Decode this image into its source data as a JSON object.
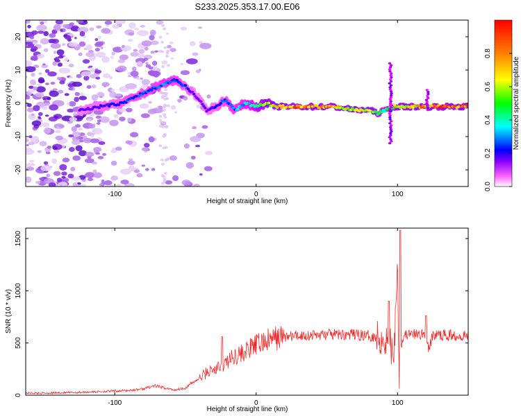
{
  "title": "S233.2025.353.17.00.E06",
  "colors": {
    "trace": "#ee2b2b",
    "background": "#ffffff",
    "axis": "#000000"
  },
  "chart_data": [
    {
      "type": "heatmap",
      "xlabel": "Height of straight line (km)",
      "ylabel": "Frequency (Hz)",
      "xlim": [
        -163,
        150
      ],
      "ylim": [
        -25,
        25
      ],
      "xticks": [
        -100,
        0,
        100
      ],
      "xtick_labels": [
        "-100",
        "0",
        "100"
      ],
      "yticks": [
        -20,
        -10,
        0,
        10,
        20
      ],
      "ytick_labels": [
        "-20",
        "-10",
        "0",
        "10",
        "20"
      ],
      "colorbar": {
        "label": "Normalized spectral amplitude",
        "range": [
          0,
          1
        ],
        "ticks": [
          0.0,
          0.2,
          0.4,
          0.6,
          0.8
        ],
        "tick_labels": [
          "0.0",
          "0.2",
          "0.4",
          "0.6",
          "0.8"
        ],
        "colormap": [
          "#ffffff",
          "#ff00ff",
          "#0000ff",
          "#00ffff",
          "#00ff00",
          "#ffff00",
          "#ff8000",
          "#ff0000"
        ]
      },
      "ridge": {
        "x": [
          -125,
          -110,
          -95,
          -85,
          -75,
          -65,
          -57,
          -50,
          -42,
          -35,
          -28,
          -22,
          -15,
          -8,
          0,
          8,
          15,
          25,
          40,
          55,
          70,
          80,
          86,
          92,
          98,
          105,
          112,
          120,
          135,
          150
        ],
        "freq": [
          -2,
          -1,
          0,
          2,
          4,
          6,
          7,
          5,
          2,
          -2,
          -1,
          1,
          -2,
          0,
          -1,
          0,
          -1,
          -1,
          -1,
          -1,
          -2,
          -2,
          -3,
          -2,
          -1,
          -1,
          -1,
          -1,
          -1,
          -1
        ],
        "amplitude": [
          0.25,
          0.28,
          0.32,
          0.35,
          0.35,
          0.4,
          0.38,
          0.32,
          0.25,
          0.25,
          0.3,
          0.35,
          0.4,
          0.45,
          0.55,
          0.7,
          0.85,
          0.95,
          0.9,
          0.85,
          0.7,
          0.75,
          0.6,
          0.55,
          0.8,
          0.75,
          0.8,
          0.95,
          0.98,
          0.95
        ]
      }
    },
    {
      "type": "line",
      "xlabel": "Height of straight line (km)",
      "ylabel": "SNR (10 * v/v)",
      "xlim": [
        -163,
        150
      ],
      "ylim": [
        0,
        1600
      ],
      "xticks": [
        -100,
        0,
        100
      ],
      "xtick_labels": [
        "-100",
        "0",
        "100"
      ],
      "yticks": [
        0,
        500,
        1000,
        1500
      ],
      "ytick_labels": [
        "0",
        "500",
        "1000",
        "1500"
      ],
      "x": [
        -163,
        -150,
        -130,
        -110,
        -100,
        -90,
        -80,
        -72,
        -65,
        -58,
        -50,
        -45,
        -40,
        -35,
        -30,
        -25,
        -20,
        -15,
        -10,
        -5,
        0,
        5,
        10,
        15,
        20,
        30,
        40,
        50,
        60,
        70,
        80,
        85,
        90,
        95,
        97,
        99,
        100,
        101,
        103,
        105,
        110,
        115,
        120,
        122,
        125,
        130,
        140,
        150
      ],
      "values": [
        20,
        20,
        25,
        35,
        40,
        45,
        60,
        90,
        70,
        50,
        70,
        120,
        160,
        220,
        240,
        270,
        330,
        380,
        400,
        440,
        480,
        510,
        530,
        550,
        560,
        570,
        575,
        580,
        580,
        580,
        570,
        560,
        540,
        500,
        320,
        900,
        1400,
        200,
        520,
        580,
        580,
        580,
        590,
        430,
        580,
        575,
        575,
        570
      ],
      "spikes": [
        {
          "x": -24,
          "value": 560
        },
        {
          "x": 94,
          "value": 900
        },
        {
          "x": 102,
          "value": 1580
        },
        {
          "x": 120,
          "value": 760
        }
      ]
    }
  ]
}
